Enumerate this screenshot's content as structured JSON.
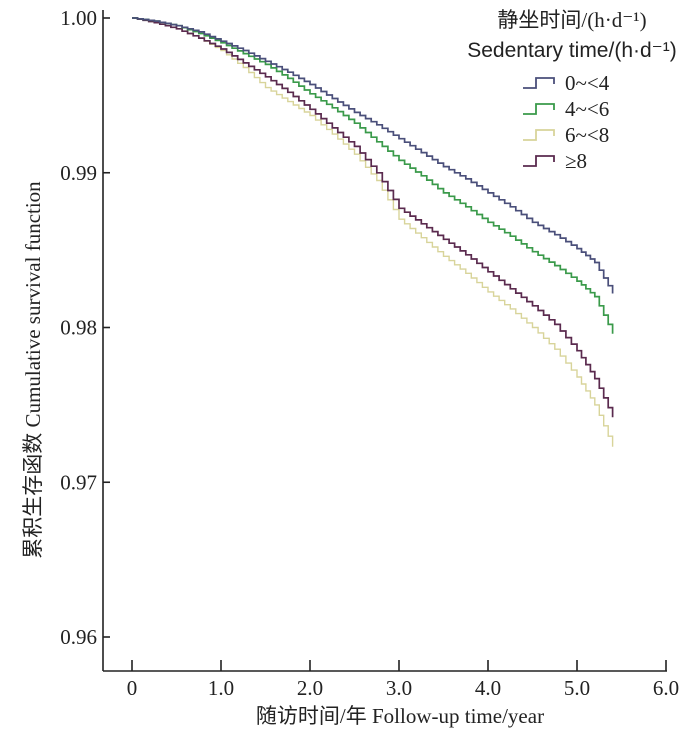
{
  "chart_data": {
    "type": "line",
    "subtype": "step",
    "title": "",
    "xlabel": "随访时间/年 Follow-up time/year",
    "ylabel": "累积生存函数 Cumulative survival function",
    "xlim": [
      -0.25,
      6.0
    ],
    "ylim": [
      0.958,
      1.0
    ],
    "x_ticks": [
      0,
      1.0,
      2.0,
      3.0,
      4.0,
      5.0,
      6.0
    ],
    "x_tick_labels": [
      "0",
      "1.0",
      "2.0",
      "3.0",
      "4.0",
      "5.0",
      "6.0"
    ],
    "y_ticks": [
      0.96,
      0.97,
      0.98,
      0.99,
      1.0
    ],
    "y_tick_labels": [
      "0.96",
      "0.97",
      "0.98",
      "0.99",
      "1.00"
    ],
    "grid": false,
    "legend": {
      "placement": "top-right",
      "title_cn": "静坐时间/(h·d⁻¹)",
      "title_en": "Sedentary time/(h·d⁻¹)"
    },
    "x": [
      0,
      0.25,
      0.5,
      0.75,
      1.0,
      1.25,
      1.5,
      1.75,
      2.0,
      2.25,
      2.5,
      2.75,
      3.0,
      3.25,
      3.5,
      3.75,
      4.0,
      4.25,
      4.5,
      4.75,
      5.0,
      5.2,
      5.4
    ],
    "series": [
      {
        "name": "0~<4",
        "color": "#4a4f7a",
        "values": [
          1.0,
          0.9998,
          0.9995,
          0.9991,
          0.9985,
          0.9979,
          0.9972,
          0.9965,
          0.9957,
          0.9948,
          0.9939,
          0.9931,
          0.9922,
          0.9913,
          0.9904,
          0.9896,
          0.9887,
          0.9878,
          0.9868,
          0.986,
          0.9851,
          0.9842,
          0.9822
        ]
      },
      {
        "name": "4~<6",
        "color": "#3a9a4a",
        "values": [
          1.0,
          0.9998,
          0.9995,
          0.999,
          0.9984,
          0.9977,
          0.997,
          0.9961,
          0.9951,
          0.9942,
          0.9932,
          0.992,
          0.9908,
          0.9898,
          0.9887,
          0.9878,
          0.9868,
          0.9859,
          0.9849,
          0.984,
          0.983,
          0.982,
          0.9796
        ]
      },
      {
        "name": "6~<8",
        "color": "#d8d49a",
        "values": [
          1.0,
          0.9997,
          0.9993,
          0.9987,
          0.9979,
          0.9968,
          0.9955,
          0.9946,
          0.9937,
          0.9925,
          0.9912,
          0.9895,
          0.987,
          0.9858,
          0.9846,
          0.9835,
          0.9823,
          0.9812,
          0.98,
          0.9786,
          0.9768,
          0.975,
          0.9723
        ]
      },
      {
        "name": "≥8",
        "color": "#5a2a4e",
        "values": [
          1.0,
          0.9997,
          0.9993,
          0.9987,
          0.998,
          0.9971,
          0.9962,
          0.9952,
          0.9941,
          0.9929,
          0.9917,
          0.99,
          0.9877,
          0.9867,
          0.9857,
          0.9847,
          0.9836,
          0.9825,
          0.9814,
          0.9802,
          0.9785,
          0.9767,
          0.9742
        ]
      }
    ]
  }
}
